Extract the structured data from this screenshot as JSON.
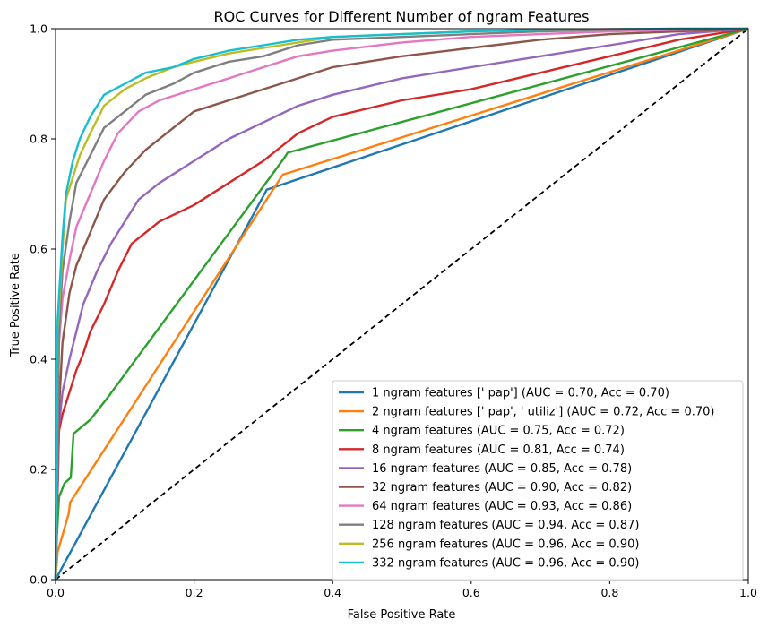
{
  "chart_data": {
    "type": "line",
    "title": "ROC Curves for Different Number of ngram Features",
    "xlabel": "False Positive Rate",
    "ylabel": "True Positive Rate",
    "xlim": [
      0.0,
      1.0
    ],
    "ylim": [
      0.0,
      1.0
    ],
    "xticks": [
      "0.0",
      "0.2",
      "0.4",
      "0.6",
      "0.8",
      "1.0"
    ],
    "yticks": [
      "0.0",
      "0.2",
      "0.4",
      "0.6",
      "0.8",
      "1.0"
    ],
    "legend_position": "lower-right",
    "reference_line": {
      "name": "chance",
      "style": "dashed",
      "color": "#000000",
      "x": [
        0,
        1
      ],
      "y": [
        0,
        1
      ]
    },
    "series": [
      {
        "name": "1 ngram features [' pap'] (AUC = 0.70, Acc = 0.70)",
        "color": "#1f77b4",
        "x": [
          0,
          0.305,
          1
        ],
        "y": [
          0,
          0.708,
          1
        ]
      },
      {
        "name": "2 ngram features [' pap', ' utiliz'] (AUC = 0.72, Acc = 0.70)",
        "color": "#ff7f0e",
        "x": [
          0,
          0.003,
          0.019,
          0.021,
          0.328,
          1
        ],
        "y": [
          0,
          0.05,
          0.12,
          0.14,
          0.735,
          1
        ]
      },
      {
        "name": "4 ngram features (AUC = 0.75, Acc = 0.72)",
        "color": "#2ca02c",
        "x": [
          0,
          0.002,
          0.005,
          0.013,
          0.022,
          0.026,
          0.05,
          0.075,
          0.33,
          0.335,
          1
        ],
        "y": [
          0,
          0.08,
          0.15,
          0.175,
          0.185,
          0.265,
          0.29,
          0.33,
          0.765,
          0.775,
          1
        ]
      },
      {
        "name": "8 ngram features (AUC = 0.81, Acc = 0.74)",
        "color": "#d62728",
        "x": [
          0,
          0.005,
          0.01,
          0.02,
          0.03,
          0.04,
          0.05,
          0.07,
          0.09,
          0.11,
          0.15,
          0.2,
          0.25,
          0.3,
          0.33,
          0.35,
          0.4,
          0.5,
          0.6,
          0.7,
          0.8,
          0.9,
          1.0
        ],
        "y": [
          0,
          0.27,
          0.3,
          0.34,
          0.38,
          0.41,
          0.45,
          0.5,
          0.56,
          0.61,
          0.65,
          0.68,
          0.72,
          0.76,
          0.79,
          0.81,
          0.84,
          0.87,
          0.89,
          0.92,
          0.95,
          0.98,
          1.0
        ]
      },
      {
        "name": "16 ngram features (AUC = 0.85, Acc = 0.78)",
        "color": "#9467bd",
        "x": [
          0,
          0.005,
          0.01,
          0.02,
          0.03,
          0.04,
          0.06,
          0.08,
          0.1,
          0.12,
          0.15,
          0.2,
          0.25,
          0.3,
          0.35,
          0.4,
          0.5,
          0.6,
          0.7,
          0.8,
          0.9,
          1.0
        ],
        "y": [
          0,
          0.28,
          0.34,
          0.4,
          0.45,
          0.5,
          0.56,
          0.61,
          0.65,
          0.69,
          0.72,
          0.76,
          0.8,
          0.83,
          0.86,
          0.88,
          0.91,
          0.93,
          0.95,
          0.97,
          0.99,
          1.0
        ]
      },
      {
        "name": "32 ngram features (AUC = 0.90, Acc = 0.82)",
        "color": "#8c564b",
        "x": [
          0,
          0.005,
          0.01,
          0.02,
          0.03,
          0.05,
          0.07,
          0.1,
          0.13,
          0.17,
          0.2,
          0.25,
          0.3,
          0.35,
          0.4,
          0.5,
          0.6,
          0.7,
          0.8,
          0.9,
          1.0
        ],
        "y": [
          0,
          0.31,
          0.43,
          0.52,
          0.57,
          0.63,
          0.69,
          0.74,
          0.78,
          0.82,
          0.85,
          0.87,
          0.89,
          0.91,
          0.93,
          0.95,
          0.965,
          0.98,
          0.99,
          0.995,
          1.0
        ]
      },
      {
        "name": "64 ngram features (AUC = 0.93, Acc = 0.86)",
        "color": "#e377c2",
        "x": [
          0,
          0.005,
          0.01,
          0.02,
          0.03,
          0.05,
          0.07,
          0.09,
          0.12,
          0.15,
          0.2,
          0.25,
          0.3,
          0.35,
          0.4,
          0.5,
          0.6,
          0.7,
          0.8,
          0.9,
          1.0
        ],
        "y": [
          0,
          0.43,
          0.51,
          0.58,
          0.64,
          0.7,
          0.76,
          0.81,
          0.85,
          0.87,
          0.89,
          0.91,
          0.93,
          0.95,
          0.96,
          0.975,
          0.985,
          0.99,
          0.995,
          0.998,
          1.0
        ]
      },
      {
        "name": "128 ngram features (AUC = 0.94, Acc = 0.87)",
        "color": "#7f7f7f",
        "x": [
          0,
          0.005,
          0.01,
          0.02,
          0.03,
          0.05,
          0.07,
          0.1,
          0.13,
          0.17,
          0.2,
          0.25,
          0.3,
          0.35,
          0.4,
          0.5,
          0.6,
          0.7,
          0.8,
          0.9,
          1.0
        ],
        "y": [
          0,
          0.45,
          0.56,
          0.65,
          0.72,
          0.77,
          0.82,
          0.85,
          0.88,
          0.9,
          0.92,
          0.94,
          0.95,
          0.97,
          0.98,
          0.985,
          0.99,
          0.995,
          0.998,
          0.999,
          1.0
        ]
      },
      {
        "name": "256 ngram features (AUC = 0.96, Acc = 0.90)",
        "color": "#bcbd22",
        "x": [
          0,
          0.003,
          0.01,
          0.015,
          0.025,
          0.035,
          0.05,
          0.07,
          0.1,
          0.13,
          0.17,
          0.2,
          0.25,
          0.3,
          0.35,
          0.4,
          0.5,
          0.6,
          0.7,
          0.8,
          0.9,
          1.0
        ],
        "y": [
          0,
          0.45,
          0.6,
          0.69,
          0.73,
          0.77,
          0.81,
          0.86,
          0.89,
          0.91,
          0.93,
          0.94,
          0.955,
          0.965,
          0.975,
          0.985,
          0.99,
          0.995,
          0.998,
          0.999,
          1.0,
          1.0
        ]
      },
      {
        "name": "332 ngram features (AUC = 0.96, Acc = 0.90)",
        "color": "#17becf",
        "x": [
          0,
          0.003,
          0.01,
          0.015,
          0.025,
          0.035,
          0.05,
          0.07,
          0.1,
          0.13,
          0.17,
          0.2,
          0.25,
          0.3,
          0.35,
          0.4,
          0.5,
          0.6,
          0.7,
          0.8,
          0.9,
          1.0
        ],
        "y": [
          0,
          0.47,
          0.62,
          0.7,
          0.76,
          0.8,
          0.84,
          0.88,
          0.9,
          0.92,
          0.93,
          0.945,
          0.96,
          0.97,
          0.98,
          0.985,
          0.99,
          0.995,
          0.998,
          0.999,
          1.0,
          1.0
        ]
      }
    ]
  }
}
